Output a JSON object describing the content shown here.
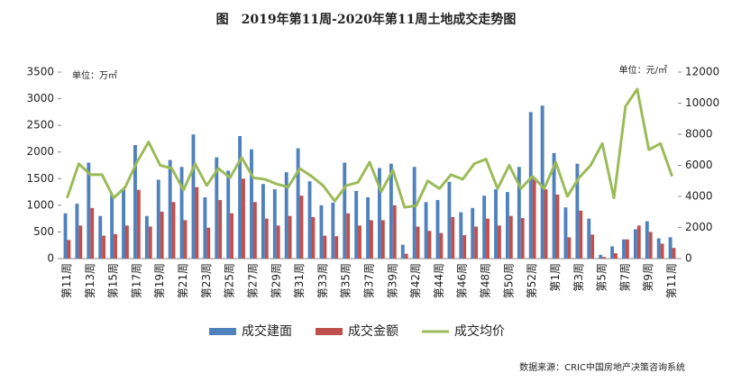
{
  "chart_data": {
    "type": "bar_line",
    "title": "图　2019年第11周-2020年第11周土地成交走势图",
    "y_unit": "单位：万㎡",
    "y2_unit": "单位：元/㎡",
    "source": "数据来源：CRIC中国房地产决策咨询系统",
    "categories": [
      "第11周",
      null,
      "第13周",
      null,
      "第15周",
      null,
      "第17周",
      null,
      "第19周",
      null,
      "第21周",
      null,
      "第23周",
      null,
      "第25周",
      null,
      "第27周",
      null,
      "第29周",
      null,
      "第31周",
      null,
      "第33周",
      null,
      "第35周",
      null,
      "第37周",
      null,
      "第39周",
      null,
      "第42周",
      null,
      "第44周",
      null,
      "第46周",
      null,
      "第48周",
      null,
      "第50周",
      null,
      "第52周",
      null,
      "第1周",
      null,
      "第3周",
      null,
      "第5周",
      null,
      "第7周",
      null,
      "第9周",
      null,
      "第11周"
    ],
    "ylim": [
      0,
      3500
    ],
    "yticks": [
      0,
      500,
      1000,
      1500,
      2000,
      2500,
      3000,
      3500
    ],
    "y2lim": [
      0,
      12000
    ],
    "y2ticks": [
      0,
      2000,
      4000,
      6000,
      8000,
      10000,
      12000
    ],
    "series": [
      {
        "name": "成交建面",
        "type": "bar",
        "color": "#4f81bd",
        "values": [
          850,
          1030,
          1800,
          800,
          1200,
          1300,
          2130,
          800,
          1480,
          1850,
          1720,
          2330,
          1150,
          1900,
          1650,
          2300,
          2050,
          1400,
          1300,
          1620,
          2070,
          1450,
          1000,
          1050,
          1800,
          1270,
          1150,
          1700,
          1780,
          260,
          1720,
          1060,
          1100,
          1440,
          870,
          950,
          1180,
          1300,
          1250,
          1720,
          2750,
          2870,
          1980,
          960,
          1780,
          750,
          70,
          230,
          360,
          550,
          700,
          380,
          400
        ]
      },
      {
        "name": "成交金额",
        "type": "bar",
        "color": "#c0504d",
        "values": [
          350,
          620,
          950,
          430,
          460,
          620,
          1290,
          600,
          880,
          1060,
          720,
          1340,
          580,
          1100,
          850,
          1500,
          1060,
          750,
          620,
          800,
          1180,
          780,
          430,
          420,
          850,
          620,
          720,
          720,
          1000,
          90,
          600,
          520,
          480,
          780,
          440,
          600,
          750,
          620,
          800,
          760,
          1500,
          1300,
          1200,
          400,
          900,
          450,
          30,
          100,
          360,
          620,
          500,
          280,
          200
        ]
      },
      {
        "name": "成交均价",
        "type": "line",
        "axis": "y2",
        "color": "#9bbb59",
        "values": [
          3900,
          6100,
          5400,
          5400,
          3900,
          4600,
          6200,
          7500,
          6000,
          5800,
          4400,
          6100,
          4700,
          5800,
          5200,
          6500,
          5200,
          5100,
          4800,
          4600,
          5800,
          5300,
          4700,
          3700,
          4700,
          4900,
          6200,
          4300,
          5700,
          3300,
          3400,
          5000,
          4500,
          5400,
          5100,
          6100,
          6400,
          4500,
          6000,
          4500,
          5300,
          4500,
          6200,
          4000,
          5200,
          6000,
          7400,
          3900,
          9800,
          10900,
          7000,
          7400,
          5300
        ]
      }
    ]
  }
}
